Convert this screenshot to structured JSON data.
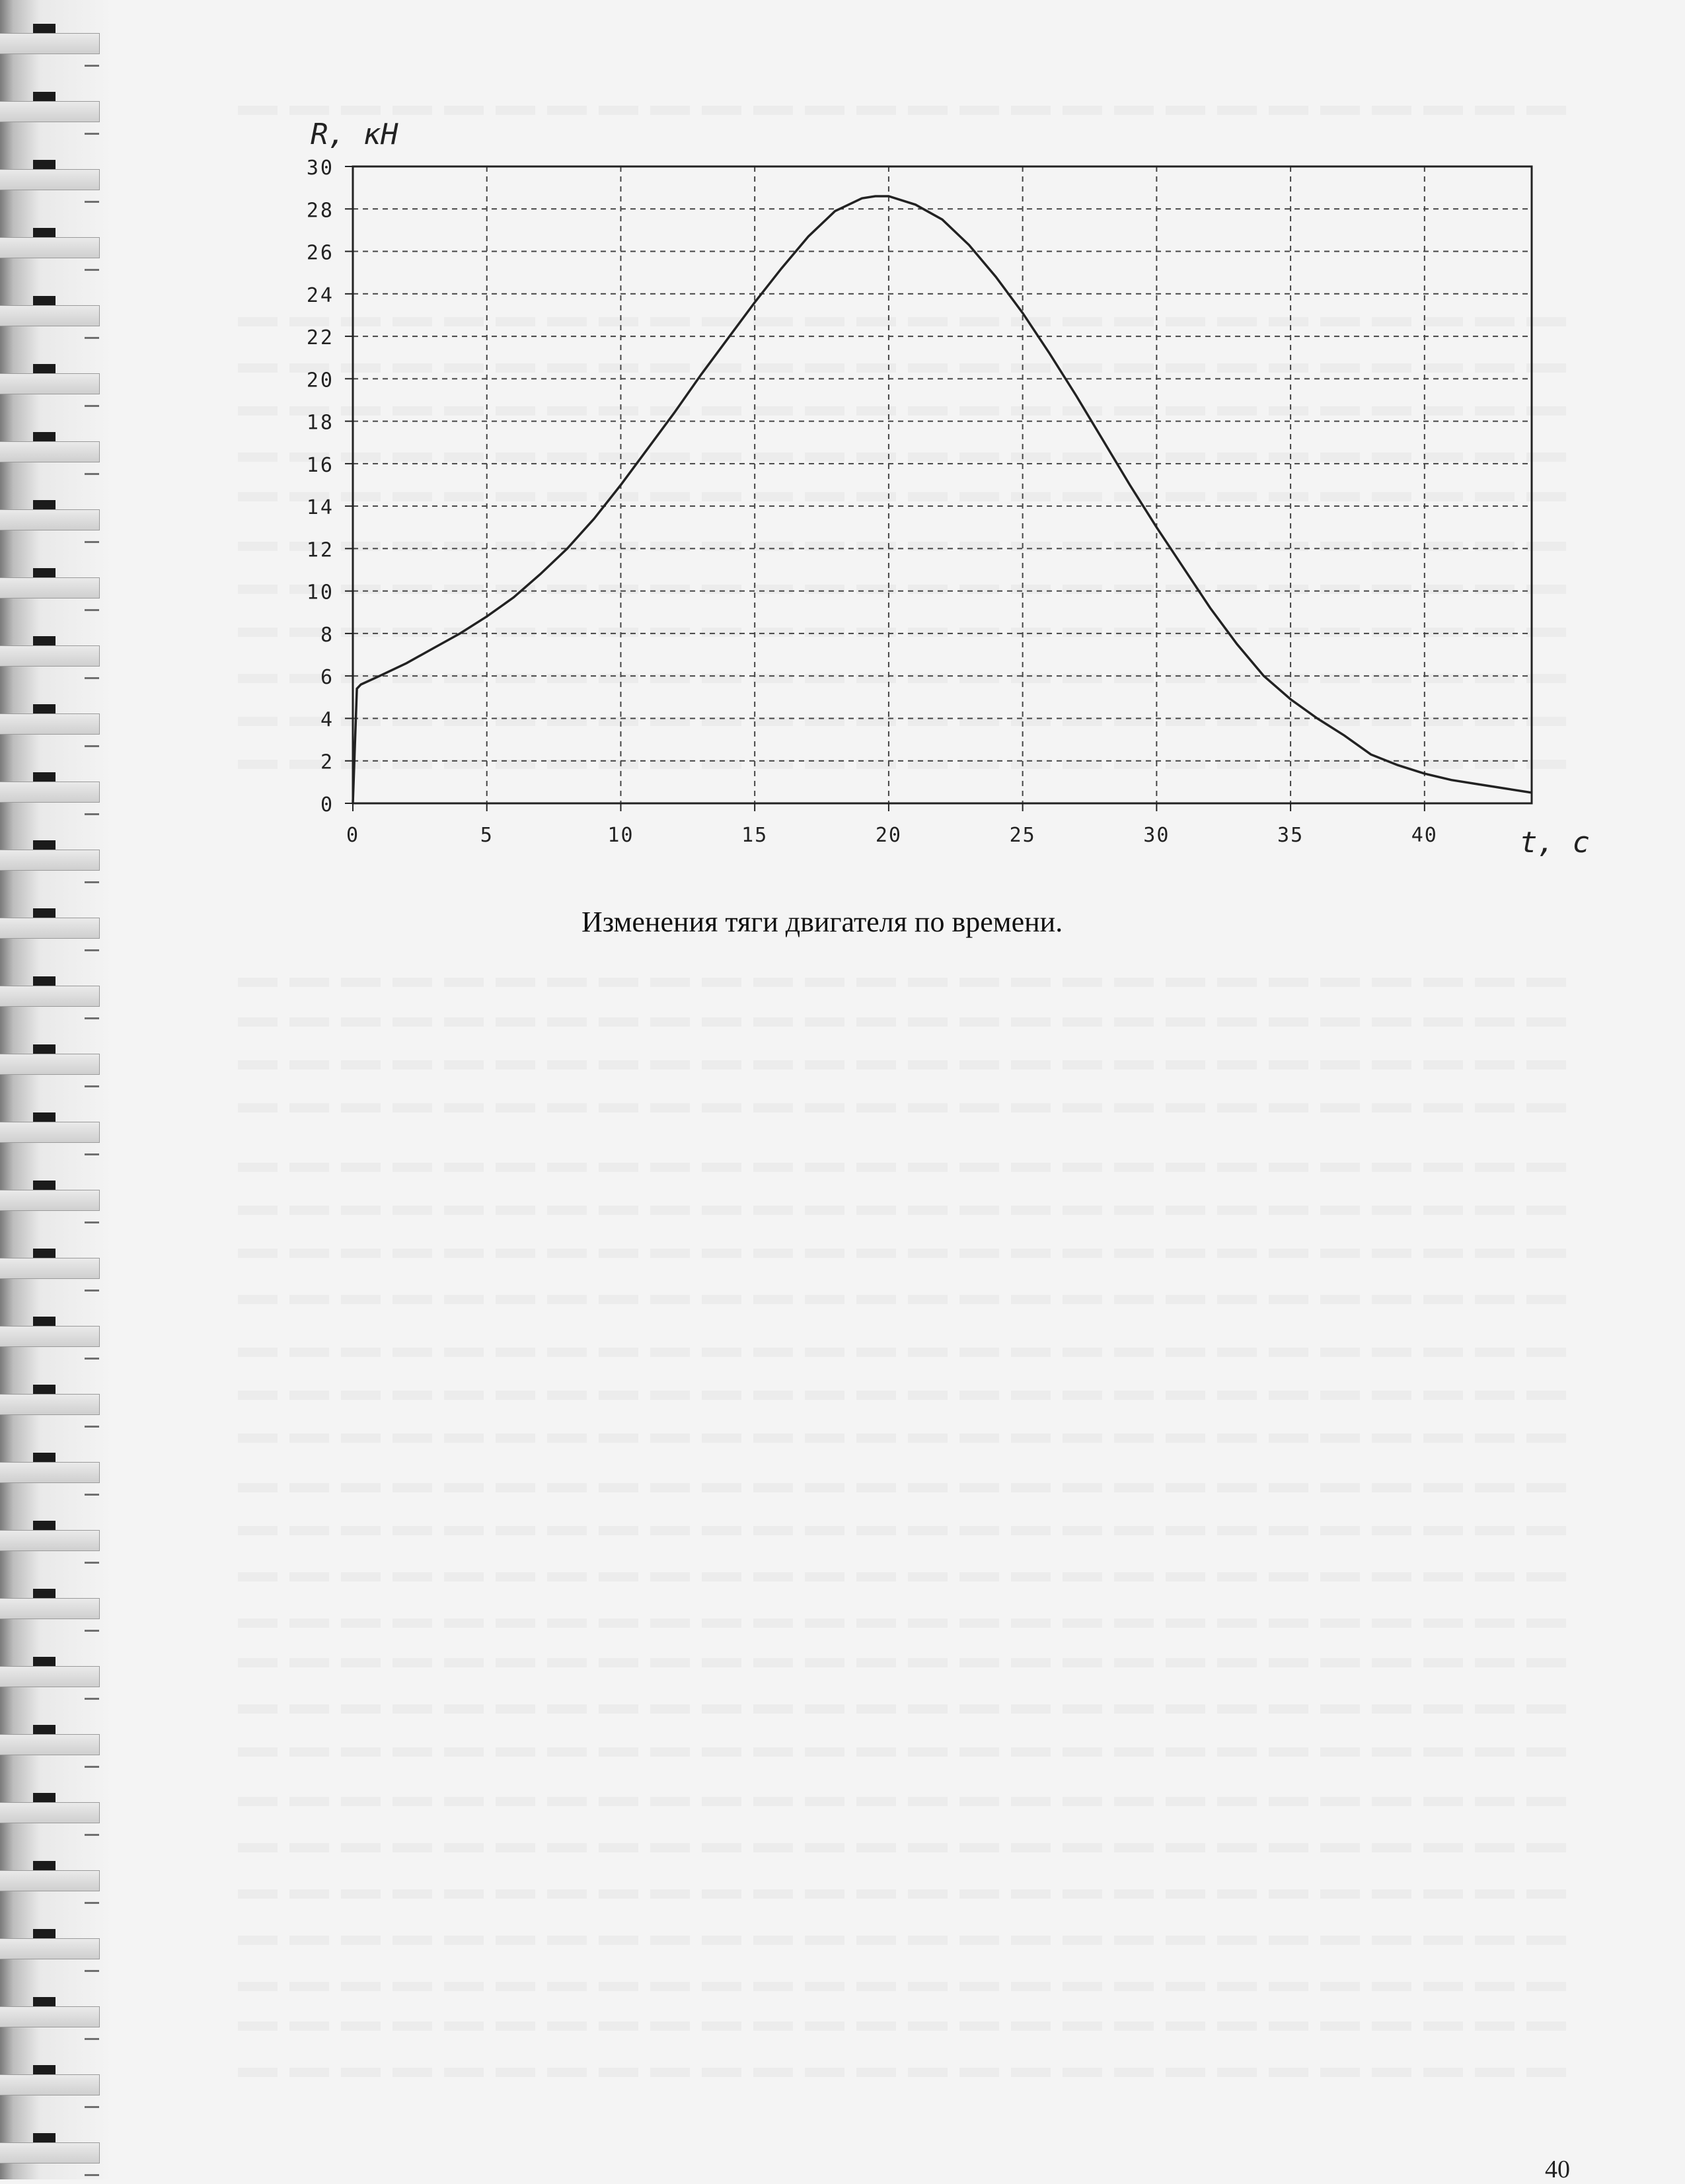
{
  "page": {
    "caption": "Изменения тяги двигателя по времени.",
    "page_number": "40"
  },
  "chart_data": {
    "type": "line",
    "title": "",
    "xlabel": "t, c",
    "ylabel": "R, кН",
    "xlim": [
      0,
      44
    ],
    "ylim": [
      0,
      30
    ],
    "x_ticks": [
      0,
      5,
      10,
      15,
      20,
      25,
      30,
      35,
      40
    ],
    "y_ticks": [
      0,
      2,
      4,
      6,
      8,
      10,
      12,
      14,
      16,
      18,
      20,
      22,
      24,
      26,
      28,
      30
    ],
    "grid": true,
    "grid_style": "dashed",
    "line_color": "#222222",
    "series": [
      {
        "x": [
          0,
          0.15,
          0.3,
          1,
          2,
          3,
          4,
          5,
          6,
          7,
          8,
          9,
          10,
          11,
          12,
          13,
          14,
          15,
          16,
          17,
          18,
          19,
          19.5,
          20,
          21,
          22,
          23,
          24,
          25,
          26,
          27,
          28,
          29,
          30,
          31,
          32,
          33,
          34,
          35,
          36,
          37,
          38,
          39,
          40,
          41,
          42,
          43,
          44
        ],
        "y": [
          0,
          5.4,
          5.6,
          6.0,
          6.6,
          7.3,
          8.0,
          8.8,
          9.7,
          10.8,
          12.0,
          13.4,
          15.0,
          16.7,
          18.4,
          20.2,
          21.9,
          23.6,
          25.2,
          26.7,
          27.9,
          28.5,
          28.6,
          28.6,
          28.2,
          27.5,
          26.3,
          24.8,
          23.1,
          21.2,
          19.2,
          17.1,
          15.0,
          13.0,
          11.1,
          9.2,
          7.5,
          6.0,
          4.9,
          4.0,
          3.2,
          2.3,
          1.8,
          1.4,
          1.1,
          0.9,
          0.7,
          0.5
        ]
      }
    ]
  }
}
